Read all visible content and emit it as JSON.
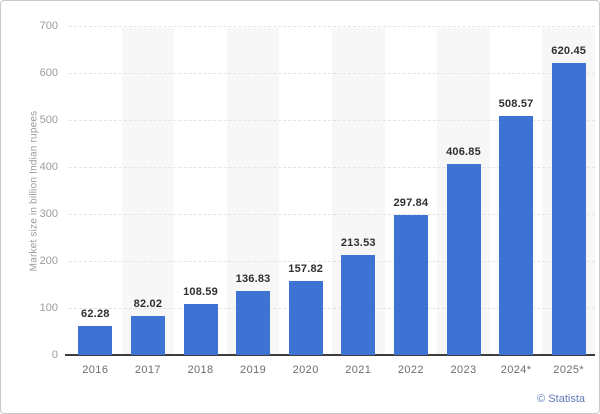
{
  "watermark": "© Statista",
  "chart_data": {
    "type": "bar",
    "title": "",
    "categories": [
      "2016",
      "2017",
      "2018",
      "2019",
      "2020",
      "2021",
      "2022",
      "2023",
      "2024*",
      "2025*"
    ],
    "values": [
      62.28,
      82.02,
      108.59,
      136.83,
      157.82,
      213.53,
      297.84,
      406.85,
      508.57,
      620.45
    ],
    "value_labels": [
      "62.28",
      "82.02",
      "108.59",
      "136.83",
      "157.82",
      "213.53",
      "297.84",
      "406.85",
      "508.57",
      "620.45"
    ],
    "xlabel": "",
    "ylabel": "Market size in billion Indian rupees",
    "ylim": [
      0,
      700
    ],
    "ytick_step": 100,
    "ytick_labels": [
      "0",
      "100",
      "200",
      "300",
      "400",
      "500",
      "600",
      "700"
    ],
    "grid": "horizontal-dashed",
    "legend": "none",
    "column_stripes": "alternating-odd",
    "colors": {
      "bar": "#3E72D3",
      "grid_line": "#e4e4e4",
      "axis_line": "#3c3c3c",
      "y_tick_label": "#9b9b9b",
      "x_tick_label": "#6e6e6e",
      "value_label": "#2f2f2f",
      "stripe": "#f7f7f7",
      "watermark": "#5f7ab8",
      "frame_border": "#c9c9c9",
      "background": "#ffffff"
    }
  }
}
